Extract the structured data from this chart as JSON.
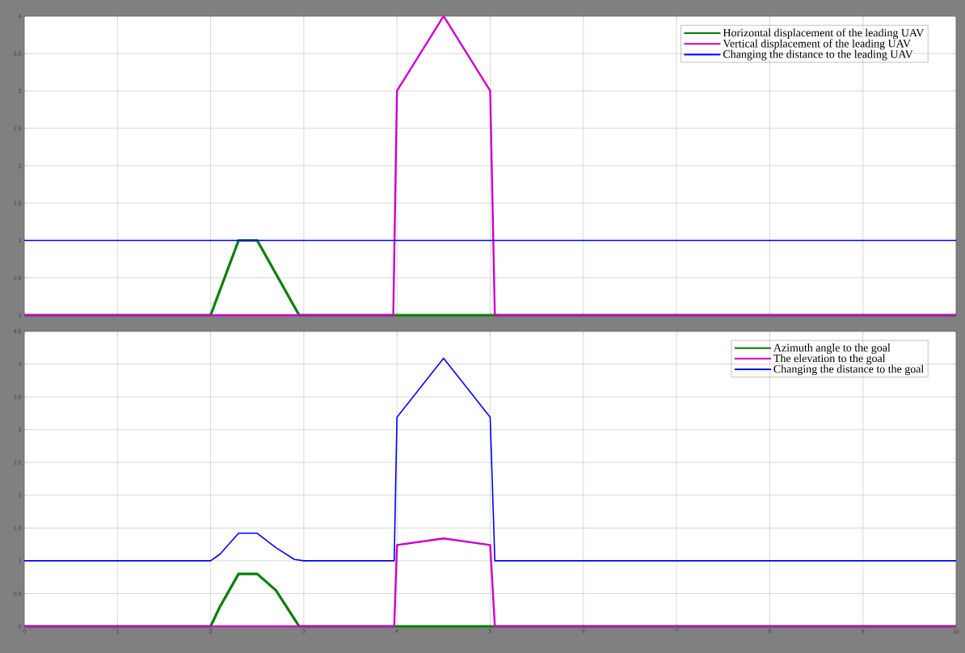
{
  "chart_data": [
    {
      "type": "line",
      "xlim": [
        0,
        10
      ],
      "ylim": [
        0,
        4
      ],
      "xticks": [
        0,
        1,
        2,
        3,
        4,
        5,
        6,
        7,
        8,
        9,
        10
      ],
      "yticks": [
        0,
        0.5,
        1,
        1.5,
        2,
        2.5,
        3,
        3.5,
        4
      ],
      "tick_labels": "y",
      "grid": true,
      "legend": "top right",
      "line_style": "solid",
      "series": [
        {
          "name": "Horizontal displacement of the leading UAV",
          "color": "#008000",
          "x": [
            0,
            2,
            2.3,
            2.5,
            2.95,
            10
          ],
          "values": [
            0,
            0,
            1,
            1,
            0,
            0
          ]
        },
        {
          "name": "Vertical displacement of the leading UAV",
          "color": "#cc00cc",
          "x": [
            0,
            3.96,
            4,
            4.5,
            5,
            5.05,
            10
          ],
          "values": [
            0,
            0,
            3,
            4,
            3,
            0,
            0
          ]
        },
        {
          "name": "Changing the distance to the leading UAV",
          "color": "#0000ff",
          "x": [
            0,
            10
          ],
          "values": [
            1,
            1
          ]
        }
      ]
    },
    {
      "type": "line",
      "xlim": [
        0,
        10
      ],
      "ylim": [
        0,
        4.5
      ],
      "xticks": [
        0,
        1,
        2,
        3,
        4,
        5,
        6,
        7,
        8,
        9,
        10
      ],
      "yticks": [
        0,
        0.5,
        1,
        1.5,
        2,
        2.5,
        3,
        3.5,
        4,
        4.5
      ],
      "grid": true,
      "legend": "top right",
      "line_style": "solid",
      "series": [
        {
          "name": "Azimuth angle to the goal",
          "color": "#008000",
          "x": [
            0,
            2,
            2.1,
            2.3,
            2.5,
            2.7,
            2.95,
            10
          ],
          "values": [
            0,
            0,
            0.3,
            0.8,
            0.8,
            0.55,
            0,
            0
          ]
        },
        {
          "name": "The elevation to the goal",
          "color": "#cc00cc",
          "x": [
            0,
            3.97,
            4,
            4.5,
            5,
            5.05,
            10
          ],
          "values": [
            0,
            0,
            1.24,
            1.34,
            1.24,
            0,
            0
          ]
        },
        {
          "name": "Changing the distance to the goal",
          "color": "#0000ff",
          "x": [
            0,
            2,
            2.1,
            2.3,
            2.5,
            2.7,
            2.9,
            3,
            3.97,
            4,
            4.5,
            5,
            5.05,
            10
          ],
          "values": [
            1,
            1,
            1.1,
            1.42,
            1.42,
            1.2,
            1.02,
            1,
            1,
            3.19,
            4.09,
            3.19,
            1,
            1
          ]
        }
      ]
    }
  ]
}
